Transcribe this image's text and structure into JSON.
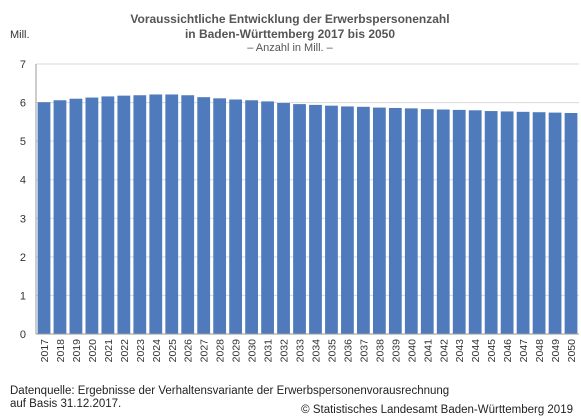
{
  "chart_data": {
    "type": "bar",
    "title_line1": "Voraussichtliche Entwicklung der Erwerbspersonenzahl",
    "title_line2": "in Baden-Württemberg 2017 bis 2050",
    "subtitle": "– Anzahl in Mill. –",
    "ylabel": "Mill.",
    "xlabel": "",
    "ylim": [
      0,
      7
    ],
    "yticks": [
      0,
      1,
      2,
      3,
      4,
      5,
      6,
      7
    ],
    "grid": true,
    "bar_color": "#4f7bbd",
    "categories": [
      "2017",
      "2018",
      "2019",
      "2020",
      "2021",
      "2022",
      "2023",
      "2024",
      "2025",
      "2026",
      "2027",
      "2028",
      "2029",
      "2030",
      "2031",
      "2032",
      "2033",
      "2034",
      "2035",
      "2036",
      "2037",
      "2038",
      "2039",
      "2040",
      "2041",
      "2042",
      "2043",
      "2044",
      "2045",
      "2046",
      "2047",
      "2048",
      "2049",
      "2050"
    ],
    "values": [
      6.01,
      6.06,
      6.1,
      6.13,
      6.16,
      6.18,
      6.19,
      6.21,
      6.21,
      6.19,
      6.14,
      6.11,
      6.08,
      6.06,
      6.03,
      5.99,
      5.96,
      5.94,
      5.92,
      5.9,
      5.89,
      5.87,
      5.86,
      5.85,
      5.83,
      5.82,
      5.81,
      5.8,
      5.78,
      5.77,
      5.76,
      5.75,
      5.74,
      5.73
    ]
  },
  "footer": {
    "source_line1": "Datenquelle: Ergebnisse der Verhaltensvariante der Erwerbspersonenvorausrechnung",
    "source_line2": "auf Basis 31.12.2017.",
    "copyright": "© Statistisches Landesamt Baden-Württemberg 2019"
  }
}
